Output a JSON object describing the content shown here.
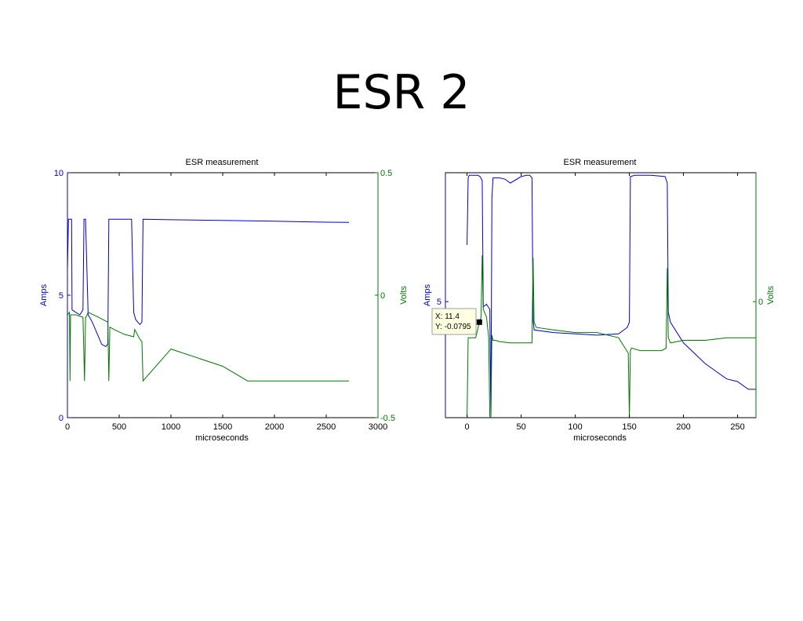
{
  "slide": {
    "title": "ESR 2"
  },
  "colors": {
    "current": "#0000cc",
    "voltage": "#007700",
    "axis": "#000000",
    "datatip_bg": "#ffffe1"
  },
  "chart_data": [
    {
      "type": "line",
      "title": "ESR measurement",
      "xlabel": "microseconds",
      "ylabel_left": "Amps",
      "ylabel_right": "Volts",
      "xlim": [
        0,
        3000
      ],
      "ylim_left": [
        0,
        10
      ],
      "ylim_right": [
        -0.5,
        0.5
      ],
      "xticks": [
        0,
        500,
        1000,
        1500,
        2000,
        2500,
        3000
      ],
      "yticks_left": [
        0,
        5,
        10
      ],
      "yticks_right": [
        -0.5,
        0,
        0.5
      ],
      "grid": false,
      "series": [
        {
          "axis": "left",
          "x": [
            0,
            10,
            15,
            40,
            45,
            80,
            120,
            150,
            160,
            175,
            200,
            240,
            280,
            330,
            370,
            390,
            400,
            410,
            450,
            550,
            620,
            640,
            660,
            700,
            720,
            730,
            1000,
            1500,
            2000,
            2500,
            2720
          ],
          "y": [
            6.0,
            8.1,
            8.1,
            8.1,
            4.4,
            4.3,
            4.2,
            4.4,
            8.1,
            8.1,
            4.2,
            3.9,
            3.5,
            3.0,
            2.9,
            3.0,
            8.1,
            8.1,
            8.1,
            8.1,
            8.1,
            4.3,
            4.0,
            3.8,
            3.9,
            8.1,
            8.08,
            8.05,
            8.02,
            7.98,
            7.97
          ]
        },
        {
          "axis": "right",
          "x": [
            0,
            20,
            25,
            30,
            80,
            150,
            165,
            175,
            180,
            200,
            300,
            390,
            400,
            410,
            450,
            550,
            640,
            650,
            700,
            720,
            730,
            1000,
            1500,
            1740,
            2000,
            2500,
            2720
          ],
          "y": [
            -0.08,
            -0.07,
            -0.35,
            -0.08,
            -0.08,
            -0.09,
            -0.35,
            -0.09,
            -0.09,
            -0.07,
            -0.09,
            -0.11,
            -0.35,
            -0.13,
            -0.14,
            -0.16,
            -0.17,
            -0.14,
            -0.18,
            -0.19,
            -0.35,
            -0.22,
            -0.29,
            -0.35,
            -0.35,
            -0.35,
            -0.35
          ]
        }
      ]
    },
    {
      "type": "line",
      "title": "ESR measurement",
      "xlabel": "microseconds",
      "ylabel_left": "Amps",
      "ylabel_right": "Volts",
      "xlim": [
        -20,
        267
      ],
      "ylim_left": [
        0.5,
        10
      ],
      "ylim_right": [
        -0.45,
        0.5
      ],
      "xticks": [
        0,
        50,
        100,
        150,
        200,
        250
      ],
      "yticks_left": [
        5
      ],
      "yticks_right": [
        0
      ],
      "grid": false,
      "series": [
        {
          "axis": "left",
          "x": [
            0,
            1,
            2,
            10,
            12,
            14,
            15,
            18,
            21,
            22,
            23,
            24,
            30,
            35,
            40,
            50,
            55,
            58,
            60,
            61,
            62,
            80,
            100,
            120,
            140,
            148,
            150,
            151,
            155,
            170,
            183,
            185,
            186,
            188,
            200,
            210,
            220,
            230,
            240,
            250,
            260,
            267
          ],
          "y": [
            7.2,
            9.8,
            9.9,
            9.9,
            9.85,
            9.7,
            4.8,
            4.9,
            4.7,
            0.5,
            9.0,
            9.8,
            9.8,
            9.75,
            9.6,
            9.85,
            9.9,
            9.9,
            9.8,
            4.3,
            3.9,
            3.8,
            3.75,
            3.7,
            3.75,
            4.0,
            4.2,
            9.85,
            9.9,
            9.9,
            9.85,
            9.6,
            4.6,
            4.2,
            3.4,
            3.0,
            2.6,
            2.3,
            2.0,
            1.9,
            1.6,
            1.6
          ]
        },
        {
          "axis": "right",
          "x": [
            -1,
            0,
            1,
            8,
            11.4,
            13,
            14,
            15,
            18,
            20,
            21,
            22,
            23,
            24,
            26,
            30,
            40,
            50,
            58,
            60,
            61,
            62,
            64,
            80,
            100,
            120,
            140,
            149,
            150,
            151,
            152,
            160,
            180,
            184,
            185,
            186,
            188,
            200,
            220,
            240,
            260,
            267
          ],
          "y": [
            -0.45,
            -0.45,
            -0.14,
            -0.14,
            -0.0795,
            -0.06,
            0.18,
            -0.03,
            -0.06,
            -0.14,
            -0.45,
            -0.45,
            -0.13,
            -0.15,
            -0.15,
            -0.155,
            -0.16,
            -0.16,
            -0.16,
            -0.16,
            0.17,
            -0.08,
            -0.1,
            -0.11,
            -0.12,
            -0.12,
            -0.14,
            -0.2,
            -0.45,
            -0.19,
            -0.18,
            -0.19,
            -0.19,
            -0.18,
            0.13,
            -0.14,
            -0.16,
            -0.15,
            -0.15,
            -0.14,
            -0.14,
            -0.14
          ]
        }
      ],
      "datatip": {
        "x_text": "X: 11.4",
        "y_text": "Y: -0.0795",
        "x": 11.4,
        "y": -0.0795,
        "axis": "right"
      }
    }
  ]
}
